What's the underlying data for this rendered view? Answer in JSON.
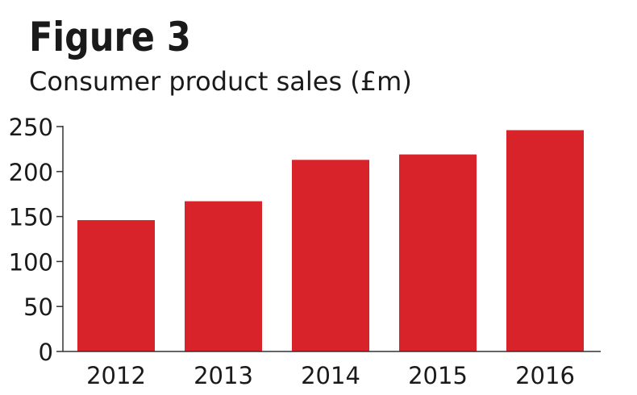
{
  "chart_data": {
    "type": "bar",
    "title": "Figure 3",
    "subtitle": "Consumer product sales (£m)",
    "categories": [
      "2012",
      "2013",
      "2014",
      "2015",
      "2016"
    ],
    "values": [
      146,
      167,
      213,
      219,
      246
    ],
    "ylim": [
      0,
      250
    ],
    "yticks": [
      0,
      50,
      100,
      150,
      200,
      250
    ],
    "grid": false,
    "bar_color": "#d9232a",
    "axis_color": "#333333"
  }
}
